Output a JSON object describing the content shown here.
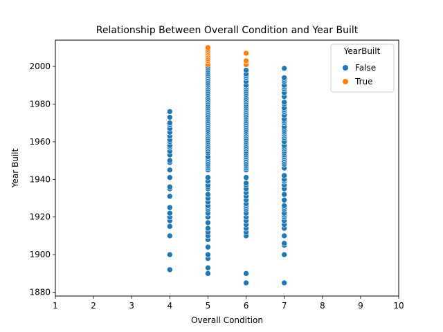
{
  "chart_data": {
    "type": "scatter",
    "title": "Relationship Between Overall Condition and Year Built",
    "xlabel": "Overall Condition",
    "ylabel": "Year Built",
    "xlim": [
      1,
      10
    ],
    "ylim": [
      1878,
      2014
    ],
    "xticks": [
      1,
      2,
      3,
      4,
      5,
      6,
      7,
      8,
      9,
      10
    ],
    "yticks": [
      1880,
      1900,
      1920,
      1940,
      1960,
      1980,
      2000
    ],
    "grid": false,
    "legend": {
      "title": "YearBuilt",
      "placement": "top-right",
      "entries": [
        "False",
        "True"
      ]
    },
    "series": [
      {
        "name": "False",
        "color": "#1f77b4",
        "points": [
          {
            "x": 4,
            "y": 1892
          },
          {
            "x": 4,
            "y": 1900
          },
          {
            "x": 4,
            "y": 1910
          },
          {
            "x": 4,
            "y": 1915
          },
          {
            "x": 4,
            "y": 1918
          },
          {
            "x": 4,
            "y": 1920
          },
          {
            "x": 4,
            "y": 1922
          },
          {
            "x": 4,
            "y": 1925
          },
          {
            "x": 4,
            "y": 1931
          },
          {
            "x": 4,
            "y": 1935
          },
          {
            "x": 4,
            "y": 1936
          },
          {
            "x": 4,
            "y": 1941
          },
          {
            "x": 4,
            "y": 1945
          },
          {
            "x": 4,
            "y": 1949
          },
          {
            "x": 4,
            "y": 1950
          },
          {
            "x": 4,
            "y": 1953
          },
          {
            "x": 4,
            "y": 1955
          },
          {
            "x": 4,
            "y": 1957
          },
          {
            "x": 4,
            "y": 1958
          },
          {
            "x": 4,
            "y": 1960
          },
          {
            "x": 4,
            "y": 1961
          },
          {
            "x": 4,
            "y": 1963
          },
          {
            "x": 4,
            "y": 1965
          },
          {
            "x": 4,
            "y": 1967
          },
          {
            "x": 4,
            "y": 1969
          },
          {
            "x": 4,
            "y": 1970
          },
          {
            "x": 4,
            "y": 1973
          },
          {
            "x": 4,
            "y": 1976
          },
          {
            "x": 5,
            "y": 1890
          },
          {
            "x": 5,
            "y": 1893
          },
          {
            "x": 5,
            "y": 1898
          },
          {
            "x": 5,
            "y": 1900
          },
          {
            "x": 5,
            "y": 1904
          },
          {
            "x": 5,
            "y": 1908
          },
          {
            "x": 5,
            "y": 1910
          },
          {
            "x": 5,
            "y": 1912
          },
          {
            "x": 5,
            "y": 1914
          },
          {
            "x": 5,
            "y": 1917
          },
          {
            "x": 5,
            "y": 1920
          },
          {
            "x": 5,
            "y": 1922
          },
          {
            "x": 5,
            "y": 1924
          },
          {
            "x": 5,
            "y": 1925
          },
          {
            "x": 5,
            "y": 1926
          },
          {
            "x": 5,
            "y": 1928
          },
          {
            "x": 5,
            "y": 1930
          },
          {
            "x": 5,
            "y": 1932
          },
          {
            "x": 5,
            "y": 1935
          },
          {
            "x": 5,
            "y": 1936
          },
          {
            "x": 5,
            "y": 1937
          },
          {
            "x": 5,
            "y": 1939
          },
          {
            "x": 5,
            "y": 1941
          },
          {
            "x": 5,
            "y": 1945
          },
          {
            "x": 5,
            "y": 1946
          },
          {
            "x": 5,
            "y": 1947
          },
          {
            "x": 5,
            "y": 1948
          },
          {
            "x": 5,
            "y": 1949
          },
          {
            "x": 5,
            "y": 1950
          },
          {
            "x": 5,
            "y": 1951
          },
          {
            "x": 5,
            "y": 1952
          },
          {
            "x": 5,
            "y": 1954
          },
          {
            "x": 5,
            "y": 1955
          },
          {
            "x": 5,
            "y": 1956
          },
          {
            "x": 5,
            "y": 1957
          },
          {
            "x": 5,
            "y": 1958
          },
          {
            "x": 5,
            "y": 1959
          },
          {
            "x": 5,
            "y": 1960
          },
          {
            "x": 5,
            "y": 1961
          },
          {
            "x": 5,
            "y": 1962
          },
          {
            "x": 5,
            "y": 1963
          },
          {
            "x": 5,
            "y": 1964
          },
          {
            "x": 5,
            "y": 1965
          },
          {
            "x": 5,
            "y": 1966
          },
          {
            "x": 5,
            "y": 1967
          },
          {
            "x": 5,
            "y": 1968
          },
          {
            "x": 5,
            "y": 1969
          },
          {
            "x": 5,
            "y": 1970
          },
          {
            "x": 5,
            "y": 1971
          },
          {
            "x": 5,
            "y": 1972
          },
          {
            "x": 5,
            "y": 1973
          },
          {
            "x": 5,
            "y": 1974
          },
          {
            "x": 5,
            "y": 1975
          },
          {
            "x": 5,
            "y": 1976
          },
          {
            "x": 5,
            "y": 1977
          },
          {
            "x": 5,
            "y": 1978
          },
          {
            "x": 5,
            "y": 1979
          },
          {
            "x": 5,
            "y": 1980
          },
          {
            "x": 5,
            "y": 1981
          },
          {
            "x": 5,
            "y": 1982
          },
          {
            "x": 5,
            "y": 1983
          },
          {
            "x": 5,
            "y": 1984
          },
          {
            "x": 5,
            "y": 1985
          },
          {
            "x": 5,
            "y": 1986
          },
          {
            "x": 5,
            "y": 1987
          },
          {
            "x": 5,
            "y": 1988
          },
          {
            "x": 5,
            "y": 1989
          },
          {
            "x": 5,
            "y": 1990
          },
          {
            "x": 5,
            "y": 1991
          },
          {
            "x": 5,
            "y": 1992
          },
          {
            "x": 5,
            "y": 1993
          },
          {
            "x": 5,
            "y": 1994
          },
          {
            "x": 5,
            "y": 1995
          },
          {
            "x": 5,
            "y": 1996
          },
          {
            "x": 5,
            "y": 1997
          },
          {
            "x": 5,
            "y": 1998
          },
          {
            "x": 5,
            "y": 1999
          },
          {
            "x": 5,
            "y": 2000
          },
          {
            "x": 6,
            "y": 1885
          },
          {
            "x": 6,
            "y": 1890
          },
          {
            "x": 6,
            "y": 1910
          },
          {
            "x": 6,
            "y": 1912
          },
          {
            "x": 6,
            "y": 1914
          },
          {
            "x": 6,
            "y": 1916
          },
          {
            "x": 6,
            "y": 1918
          },
          {
            "x": 6,
            "y": 1920
          },
          {
            "x": 6,
            "y": 1922
          },
          {
            "x": 6,
            "y": 1924
          },
          {
            "x": 6,
            "y": 1925
          },
          {
            "x": 6,
            "y": 1926
          },
          {
            "x": 6,
            "y": 1927
          },
          {
            "x": 6,
            "y": 1929
          },
          {
            "x": 6,
            "y": 1931
          },
          {
            "x": 6,
            "y": 1933
          },
          {
            "x": 6,
            "y": 1935
          },
          {
            "x": 6,
            "y": 1937
          },
          {
            "x": 6,
            "y": 1938
          },
          {
            "x": 6,
            "y": 1941
          },
          {
            "x": 6,
            "y": 1945
          },
          {
            "x": 6,
            "y": 1946
          },
          {
            "x": 6,
            "y": 1947
          },
          {
            "x": 6,
            "y": 1948
          },
          {
            "x": 6,
            "y": 1949
          },
          {
            "x": 6,
            "y": 1950
          },
          {
            "x": 6,
            "y": 1951
          },
          {
            "x": 6,
            "y": 1952
          },
          {
            "x": 6,
            "y": 1953
          },
          {
            "x": 6,
            "y": 1954
          },
          {
            "x": 6,
            "y": 1955
          },
          {
            "x": 6,
            "y": 1956
          },
          {
            "x": 6,
            "y": 1957
          },
          {
            "x": 6,
            "y": 1958
          },
          {
            "x": 6,
            "y": 1959
          },
          {
            "x": 6,
            "y": 1960
          },
          {
            "x": 6,
            "y": 1961
          },
          {
            "x": 6,
            "y": 1962
          },
          {
            "x": 6,
            "y": 1963
          },
          {
            "x": 6,
            "y": 1964
          },
          {
            "x": 6,
            "y": 1965
          },
          {
            "x": 6,
            "y": 1966
          },
          {
            "x": 6,
            "y": 1967
          },
          {
            "x": 6,
            "y": 1968
          },
          {
            "x": 6,
            "y": 1969
          },
          {
            "x": 6,
            "y": 1970
          },
          {
            "x": 6,
            "y": 1971
          },
          {
            "x": 6,
            "y": 1972
          },
          {
            "x": 6,
            "y": 1973
          },
          {
            "x": 6,
            "y": 1974
          },
          {
            "x": 6,
            "y": 1975
          },
          {
            "x": 6,
            "y": 1976
          },
          {
            "x": 6,
            "y": 1977
          },
          {
            "x": 6,
            "y": 1978
          },
          {
            "x": 6,
            "y": 1979
          },
          {
            "x": 6,
            "y": 1980
          },
          {
            "x": 6,
            "y": 1981
          },
          {
            "x": 6,
            "y": 1982
          },
          {
            "x": 6,
            "y": 1983
          },
          {
            "x": 6,
            "y": 1984
          },
          {
            "x": 6,
            "y": 1985
          },
          {
            "x": 6,
            "y": 1986
          },
          {
            "x": 6,
            "y": 1987
          },
          {
            "x": 6,
            "y": 1988
          },
          {
            "x": 6,
            "y": 1989
          },
          {
            "x": 6,
            "y": 1990
          },
          {
            "x": 6,
            "y": 1992
          },
          {
            "x": 6,
            "y": 1994
          },
          {
            "x": 6,
            "y": 1995
          },
          {
            "x": 6,
            "y": 1996
          },
          {
            "x": 6,
            "y": 1998
          },
          {
            "x": 7,
            "y": 1885
          },
          {
            "x": 7,
            "y": 1900
          },
          {
            "x": 7,
            "y": 1905
          },
          {
            "x": 7,
            "y": 1906
          },
          {
            "x": 7,
            "y": 1910
          },
          {
            "x": 7,
            "y": 1914
          },
          {
            "x": 7,
            "y": 1916
          },
          {
            "x": 7,
            "y": 1918
          },
          {
            "x": 7,
            "y": 1920
          },
          {
            "x": 7,
            "y": 1921
          },
          {
            "x": 7,
            "y": 1922
          },
          {
            "x": 7,
            "y": 1924
          },
          {
            "x": 7,
            "y": 1925
          },
          {
            "x": 7,
            "y": 1926
          },
          {
            "x": 7,
            "y": 1929
          },
          {
            "x": 7,
            "y": 1932
          },
          {
            "x": 7,
            "y": 1935
          },
          {
            "x": 7,
            "y": 1937
          },
          {
            "x": 7,
            "y": 1939
          },
          {
            "x": 7,
            "y": 1940
          },
          {
            "x": 7,
            "y": 1942
          },
          {
            "x": 7,
            "y": 1946
          },
          {
            "x": 7,
            "y": 1948
          },
          {
            "x": 7,
            "y": 1949
          },
          {
            "x": 7,
            "y": 1950
          },
          {
            "x": 7,
            "y": 1951
          },
          {
            "x": 7,
            "y": 1952
          },
          {
            "x": 7,
            "y": 1953
          },
          {
            "x": 7,
            "y": 1954
          },
          {
            "x": 7,
            "y": 1955
          },
          {
            "x": 7,
            "y": 1956
          },
          {
            "x": 7,
            "y": 1957
          },
          {
            "x": 7,
            "y": 1958
          },
          {
            "x": 7,
            "y": 1960
          },
          {
            "x": 7,
            "y": 1962
          },
          {
            "x": 7,
            "y": 1963
          },
          {
            "x": 7,
            "y": 1964
          },
          {
            "x": 7,
            "y": 1965
          },
          {
            "x": 7,
            "y": 1966
          },
          {
            "x": 7,
            "y": 1967
          },
          {
            "x": 7,
            "y": 1968
          },
          {
            "x": 7,
            "y": 1970
          },
          {
            "x": 7,
            "y": 1971
          },
          {
            "x": 7,
            "y": 1972
          },
          {
            "x": 7,
            "y": 1974
          },
          {
            "x": 7,
            "y": 1976
          },
          {
            "x": 7,
            "y": 1977
          },
          {
            "x": 7,
            "y": 1978
          },
          {
            "x": 7,
            "y": 1980
          },
          {
            "x": 7,
            "y": 1981
          },
          {
            "x": 7,
            "y": 1984
          },
          {
            "x": 7,
            "y": 1986
          },
          {
            "x": 7,
            "y": 1988
          },
          {
            "x": 7,
            "y": 1989
          },
          {
            "x": 7,
            "y": 1990
          },
          {
            "x": 7,
            "y": 1992
          },
          {
            "x": 7,
            "y": 1993
          },
          {
            "x": 7,
            "y": 1994
          },
          {
            "x": 7,
            "y": 1999
          }
        ]
      },
      {
        "name": "True",
        "color": "#ff7f0e",
        "points": [
          {
            "x": 5,
            "y": 2001
          },
          {
            "x": 5,
            "y": 2003
          },
          {
            "x": 5,
            "y": 2004
          },
          {
            "x": 5,
            "y": 2005
          },
          {
            "x": 5,
            "y": 2006
          },
          {
            "x": 5,
            "y": 2007
          },
          {
            "x": 5,
            "y": 2008
          },
          {
            "x": 5,
            "y": 2009
          },
          {
            "x": 5,
            "y": 2010
          },
          {
            "x": 6,
            "y": 2001
          },
          {
            "x": 6,
            "y": 2003
          },
          {
            "x": 6,
            "y": 2007
          }
        ]
      }
    ]
  }
}
